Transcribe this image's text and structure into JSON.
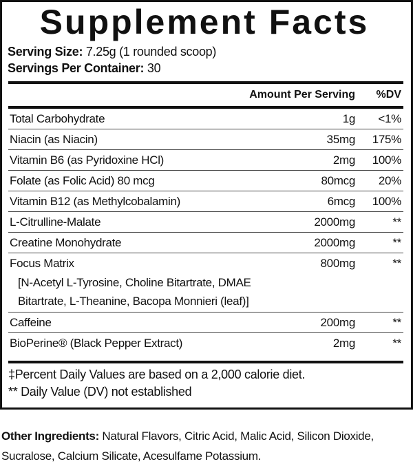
{
  "title": "Supplement Facts",
  "serving_size": {
    "label": "Serving Size:",
    "value": "7.25g (1 rounded scoop)"
  },
  "servings_per_container": {
    "label": "Servings Per Container:",
    "value": "30"
  },
  "header": {
    "amount": "Amount Per Serving",
    "dv": "%DV"
  },
  "rows": [
    {
      "name": "Total Carbohydrate",
      "amount": "1g",
      "dv": "<1%"
    },
    {
      "name": "Niacin (as Niacin)",
      "amount": "35mg",
      "dv": "175%"
    },
    {
      "name": "Vitamin B6 (as Pyridoxine HCl)",
      "amount": "2mg",
      "dv": "100%"
    },
    {
      "name": "Folate (as Folic Acid) 80 mcg",
      "amount": "80mcg",
      "dv": "20%"
    },
    {
      "name": "Vitamin B12 (as Methylcobalamin)",
      "amount": "6mcg",
      "dv": "100%"
    },
    {
      "name": "L-Citrulline-Malate",
      "amount": "2000mg",
      "dv": "**"
    },
    {
      "name": "Creatine Monohydrate",
      "amount": "2000mg",
      "dv": "**"
    },
    {
      "name": "Focus Matrix",
      "amount": "800mg",
      "dv": "**",
      "sub1": "[N-Acetyl L-Tyrosine, Choline Bitartrate, DMAE",
      "sub2": "Bitartrate, L-Theanine, Bacopa Monnieri (leaf)]"
    },
    {
      "name": "Caffeine",
      "amount": "200mg",
      "dv": "**"
    },
    {
      "name": "BioPerine® (Black Pepper Extract)",
      "amount": "2mg",
      "dv": "**"
    }
  ],
  "footnotes": [
    "‡Percent Daily Values are based on a 2,000 calorie diet.",
    "** Daily Value (DV) not established"
  ],
  "other_ingredients": {
    "label": "Other Ingredients:",
    "value": "Natural Flavors, Citric Acid, Malic Acid, Silicon Dioxide, Sucralose, Calcium Silicate, Acesulfame Potassium."
  }
}
